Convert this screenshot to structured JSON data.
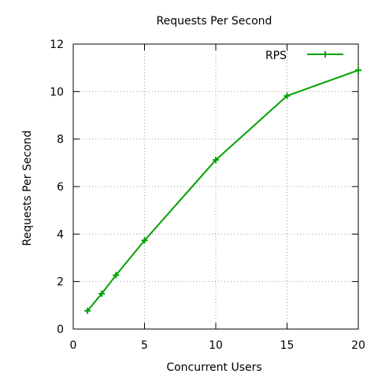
{
  "chart_data": {
    "type": "line",
    "title": "Requests Per Second",
    "xlabel": "Concurrent Users",
    "ylabel": "Requests Per Second",
    "xlim": [
      0,
      20
    ],
    "ylim": [
      0,
      12
    ],
    "xticks": [
      0,
      5,
      10,
      15,
      20
    ],
    "yticks": [
      0,
      2,
      4,
      6,
      8,
      10,
      12
    ],
    "grid": true,
    "legend_position": "top-right",
    "series": [
      {
        "name": "RPS",
        "color": "#00a000",
        "marker": "plus",
        "x": [
          1,
          2,
          3,
          5,
          10,
          15,
          20
        ],
        "y": [
          0.77,
          1.49,
          2.27,
          3.73,
          7.12,
          9.82,
          10.9
        ]
      }
    ]
  }
}
